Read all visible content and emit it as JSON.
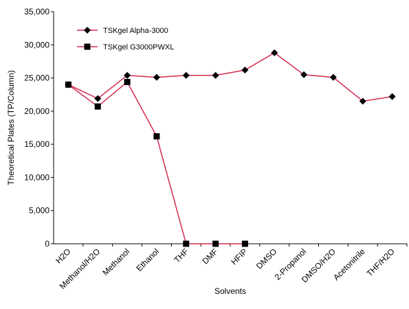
{
  "chart_data": {
    "type": "line",
    "categories": [
      "H2O",
      "Methanol/H2O",
      "Methanol",
      "Ethanol",
      "THF",
      "DMF",
      "HFIP",
      "DMSO",
      "2-Propanol",
      "DMSO/H2O",
      "Acetonitrile",
      "THF/H2O"
    ],
    "series": [
      {
        "name": "TSKgel Alpha-3000",
        "color": "#d42a4e",
        "marker": "diamond",
        "values": [
          24000,
          21900,
          25400,
          25100,
          25400,
          25400,
          26200,
          28800,
          25500,
          25100,
          21500,
          22200
        ]
      },
      {
        "name": "TSKgel G3000PWXL",
        "color": "#d42a4e",
        "marker": "square",
        "values": [
          24000,
          20700,
          24400,
          16200,
          0,
          0,
          0,
          null,
          null,
          null,
          null,
          null
        ]
      }
    ],
    "xlabel": "Solvents",
    "ylabel": "Theoretical Plates (TP/Column)",
    "ylim": [
      0,
      35000
    ],
    "yticks": [
      0,
      {
        "value": 5000,
        "label": "5,000"
      },
      {
        "value": 10000,
        "label": "10,000"
      },
      {
        "value": 15000,
        "label": "15,000"
      },
      {
        "value": 20000,
        "label": "20,000"
      },
      {
        "value": 25000,
        "label": "25,000"
      },
      {
        "value": 30000,
        "label": "30,000"
      },
      {
        "value": 35000,
        "label": "35,000"
      }
    ],
    "legend": "upper left"
  }
}
